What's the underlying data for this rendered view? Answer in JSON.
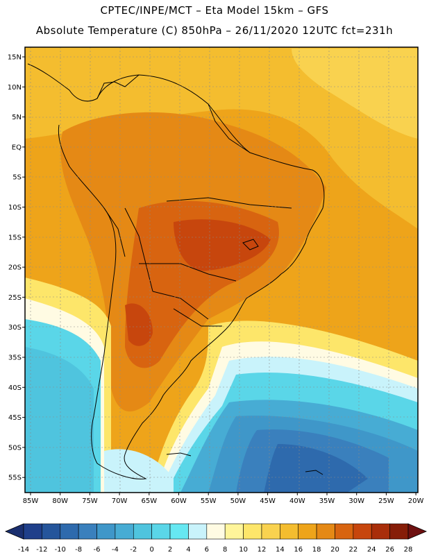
{
  "header": {
    "line1": "CPTEC/INPE/MCT –  Eta Model 15km – GFS",
    "line2": "Absolute Temperature (C) 850hPa – 26/11/2020 12UTC fct=231h"
  },
  "axes": {
    "lat_labels": [
      "15N",
      "10N",
      "5N",
      "EQ",
      "5S",
      "10S",
      "15S",
      "20S",
      "25S",
      "30S",
      "35S",
      "40S",
      "45S",
      "50S",
      "55S"
    ],
    "lon_labels": [
      "85W",
      "80W",
      "75W",
      "70W",
      "65W",
      "60W",
      "55W",
      "50W",
      "45W",
      "40W",
      "35W",
      "30W",
      "25W",
      "20W"
    ]
  },
  "colorbar": {
    "labels": [
      "-14",
      "-12",
      "-10",
      "-8",
      "-6",
      "-4",
      "-2",
      "0",
      "2",
      "4",
      "6",
      "8",
      "10",
      "12",
      "14",
      "16",
      "18",
      "20",
      "22",
      "24",
      "26",
      "28"
    ],
    "colors": [
      "#1f3f8a",
      "#25559b",
      "#2e6aad",
      "#3a80bd",
      "#3f97c9",
      "#47acd4",
      "#4fc4de",
      "#5ad6e8",
      "#66e8f2",
      "#c9f3fb",
      "#fffbe3",
      "#fff59a",
      "#fde66a",
      "#f9d24f",
      "#f4bd2f",
      "#eea41a",
      "#e58915",
      "#d86410",
      "#c7460d",
      "#a92e0a",
      "#861d08"
    ],
    "under_color": "#1a2f6f",
    "over_color": "#6e1010"
  }
}
